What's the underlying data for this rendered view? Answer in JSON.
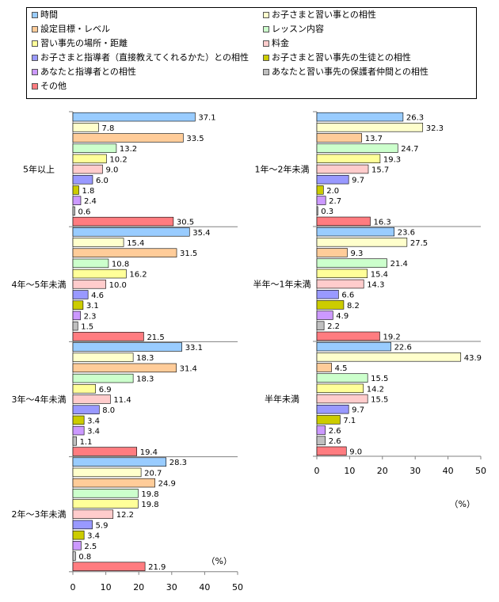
{
  "legend": {
    "items": [
      {
        "label": "時間",
        "color": "#99ccff"
      },
      {
        "label": "お子さまと習い事との相性",
        "color": "#ffffcc"
      },
      {
        "label": "設定目標・レベル",
        "color": "#ffcc99"
      },
      {
        "label": "レッスン内容",
        "color": "#ccffcc"
      },
      {
        "label": "習い事先の場所・距離",
        "color": "#ffff99"
      },
      {
        "label": "料金",
        "color": "#ffcccc"
      },
      {
        "label": "お子さまと指導者（直接教えてくれるかた）との相性",
        "color": "#9999ff"
      },
      {
        "label": "お子さまと習い事先の生徒との相性",
        "color": "#cccc00"
      },
      {
        "label": "あなたと指導者との相性",
        "color": "#cc99ff"
      },
      {
        "label": "あなたと習い事先の保護者仲間との相性",
        "color": "#c0c0c0"
      },
      {
        "label": "その他",
        "color": "#ff7c80"
      }
    ]
  },
  "chart_data": {
    "type": "bar",
    "orientation": "horizontal",
    "xlim": [
      0,
      50
    ],
    "xticks": [
      "0",
      "10",
      "20",
      "30",
      "40",
      "50"
    ],
    "unit_label": "（%）",
    "series_names": [
      "時間",
      "お子さまと習い事との相性",
      "設定目標・レベル",
      "レッスン内容",
      "習い事先の場所・距離",
      "料金",
      "お子さまと指導者（直接教えてくれるかた）との相性",
      "お子さまと習い事先の生徒との相性",
      "あなたと指導者との相性",
      "あなたと習い事先の保護者仲間との相性",
      "その他"
    ],
    "groups": [
      {
        "label": "5年以上",
        "values": [
          37.1,
          7.8,
          33.5,
          13.2,
          10.2,
          9.0,
          6.0,
          1.8,
          2.4,
          0.6,
          30.5
        ],
        "value_labels": [
          "37.1",
          "7.8",
          "33.5",
          "13.2",
          "10.2",
          "9.0",
          "6.0",
          "1.8",
          "2.4",
          "0.6",
          "30.5"
        ]
      },
      {
        "label": "4年～5年未満",
        "values": [
          35.4,
          15.4,
          31.5,
          10.8,
          16.2,
          10.0,
          4.6,
          3.1,
          2.3,
          1.5,
          21.5
        ],
        "value_labels": [
          "35.4",
          "15.4",
          "31.5",
          "10.8",
          "16.2",
          "10.0",
          "4.6",
          "3.1",
          "2.3",
          "1.5",
          "21.5"
        ]
      },
      {
        "label": "3年～4年未満",
        "values": [
          33.1,
          18.3,
          31.4,
          18.3,
          6.9,
          11.4,
          8.0,
          3.4,
          3.4,
          1.1,
          19.4
        ],
        "value_labels": [
          "33.1",
          "18.3",
          "31.4",
          "18.3",
          "6.9",
          "11.4",
          "8.0",
          "3.4",
          "3.4",
          "1.1",
          "19.4"
        ]
      },
      {
        "label": "2年～3年未満",
        "values": [
          28.3,
          20.7,
          24.9,
          19.8,
          19.8,
          12.2,
          5.9,
          3.4,
          2.5,
          0.8,
          21.9
        ],
        "value_labels": [
          "28.3",
          "20.7",
          "24.9",
          "19.8",
          "19.8",
          "12.2",
          "5.9",
          "3.4",
          "2.5",
          "0.8",
          "21.9"
        ]
      },
      {
        "label": "1年～2年未満",
        "values": [
          26.3,
          32.3,
          13.7,
          24.7,
          19.3,
          15.7,
          9.7,
          2.0,
          2.7,
          0.3,
          16.3
        ],
        "value_labels": [
          "26.3",
          "32.3",
          "13.7",
          "24.7",
          "19.3",
          "15.7",
          "9.7",
          "2.0",
          "2.7",
          "0.3",
          "16.3"
        ]
      },
      {
        "label": "半年～1年未満",
        "values": [
          23.6,
          27.5,
          9.3,
          21.4,
          15.4,
          14.3,
          6.6,
          8.2,
          4.9,
          2.2,
          19.2
        ],
        "value_labels": [
          "23.6",
          "27.5",
          "9.3",
          "21.4",
          "15.4",
          "14.3",
          "6.6",
          "8.2",
          "4.9",
          "2.2",
          "19.2"
        ]
      },
      {
        "label": "半年未満",
        "values": [
          22.6,
          43.9,
          4.5,
          15.5,
          14.2,
          15.5,
          9.7,
          7.1,
          2.6,
          2.6,
          9.0
        ],
        "value_labels": [
          "22.6",
          "43.9",
          "4.5",
          "15.5",
          "14.2",
          "15.5",
          "9.7",
          "7.1",
          "2.6",
          "2.6",
          "9.0"
        ]
      }
    ],
    "panels": [
      {
        "group_indices": [
          0,
          1,
          2,
          3
        ]
      },
      {
        "group_indices": [
          4,
          5,
          6
        ]
      }
    ]
  }
}
